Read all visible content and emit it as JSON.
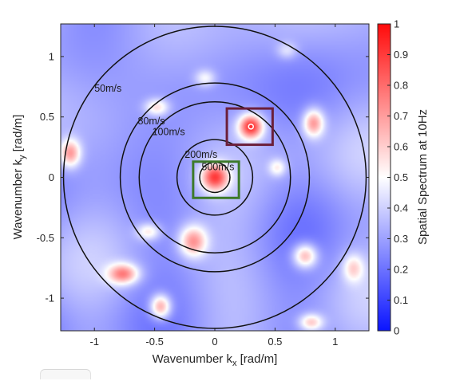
{
  "chart_data": {
    "type": "heatmap",
    "xlabel": "Wavenumber k",
    "xlabel_sub": "x",
    "xlabel_unit": " [rad/m]",
    "ylabel": "Wavenumber k",
    "ylabel_sub": "y",
    "ylabel_unit": "  [rad/m]",
    "xlim": [
      -1.28,
      1.28
    ],
    "ylim": [
      -1.27,
      1.27
    ],
    "xticks": [
      -1,
      -0.5,
      0,
      0.5,
      1
    ],
    "xtick_labels": [
      "-1",
      "-0.5",
      "0",
      "0.5",
      "1"
    ],
    "yticks": [
      1,
      0.5,
      0,
      -0.5,
      -1
    ],
    "ytick_labels": [
      "1",
      "0.5",
      "0",
      "-0.5",
      "-1"
    ],
    "colorbar": {
      "label": "Spatial Spectrum at 10Hz",
      "range": [
        0,
        1
      ],
      "ticks": [
        0,
        0.1,
        0.2,
        0.3,
        0.4,
        0.5,
        0.6,
        0.7,
        0.8,
        0.9,
        1
      ],
      "tick_labels": [
        "0",
        "0.1",
        "0.2",
        "0.3",
        "0.4",
        "0.5",
        "0.6",
        "0.7",
        "0.8",
        "0.9",
        "1"
      ]
    },
    "velocity_circles": [
      {
        "label": "50m/s",
        "radius": 1.2566,
        "label_pos": [
          -1.0,
          0.71
        ]
      },
      {
        "label": "80m/s",
        "radius": 0.7854,
        "label_pos": [
          -0.64,
          0.44
        ]
      },
      {
        "label": "100m/s",
        "radius": 0.6283,
        "label_pos": [
          -0.52,
          0.35
        ]
      },
      {
        "label": "200m/s",
        "radius": 0.3142,
        "label_pos": [
          -0.25,
          0.16
        ]
      },
      {
        "label": "500m/s",
        "radius": 0.1257,
        "label_pos": [
          -0.11,
          0.06
        ]
      }
    ],
    "highlight_boxes": [
      {
        "color": "#6b1f3a",
        "x": [
          0.1,
          0.48
        ],
        "y": [
          0.27,
          0.57
        ]
      },
      {
        "color": "#3d7a2a",
        "x": [
          -0.18,
          0.2
        ],
        "y": [
          -0.17,
          0.13
        ]
      }
    ],
    "peak_marker": {
      "x": 0.3,
      "y": 0.42
    },
    "peaks": [
      {
        "x": 0.0,
        "y": 0.0,
        "amp": 0.55,
        "sx": 0.08,
        "sy": 0.08
      },
      {
        "x": 0.3,
        "y": 0.42,
        "amp": 0.62,
        "sx": 0.07,
        "sy": 0.07
      },
      {
        "x": 0.82,
        "y": 0.45,
        "amp": 0.42,
        "sx": 0.06,
        "sy": 0.08
      },
      {
        "x": -1.2,
        "y": 0.2,
        "amp": 0.4,
        "sx": 0.06,
        "sy": 0.08
      },
      {
        "x": -0.48,
        "y": 0.58,
        "amp": 0.28,
        "sx": 0.07,
        "sy": 0.05
      },
      {
        "x": -0.18,
        "y": -0.53,
        "amp": 0.42,
        "sx": 0.08,
        "sy": 0.09
      },
      {
        "x": -0.55,
        "y": -0.45,
        "amp": 0.26,
        "sx": 0.07,
        "sy": 0.05
      },
      {
        "x": -0.76,
        "y": -0.8,
        "amp": 0.44,
        "sx": 0.09,
        "sy": 0.06
      },
      {
        "x": -0.45,
        "y": -1.07,
        "amp": 0.43,
        "sx": 0.06,
        "sy": 0.07
      },
      {
        "x": 0.75,
        "y": -0.65,
        "amp": 0.4,
        "sx": 0.07,
        "sy": 0.07
      },
      {
        "x": 0.8,
        "y": -1.2,
        "amp": 0.32,
        "sx": 0.07,
        "sy": 0.05
      },
      {
        "x": 1.15,
        "y": -0.75,
        "amp": 0.25,
        "sx": 0.06,
        "sy": 0.08
      },
      {
        "x": 0.52,
        "y": 0.08,
        "amp": 0.22,
        "sx": 0.05,
        "sy": 0.05
      },
      {
        "x": -0.08,
        "y": 0.82,
        "amp": 0.2,
        "sx": 0.06,
        "sy": 0.05
      },
      {
        "x": 0.6,
        "y": 1.05,
        "amp": 0.15,
        "sx": 0.06,
        "sy": 0.05
      }
    ]
  }
}
